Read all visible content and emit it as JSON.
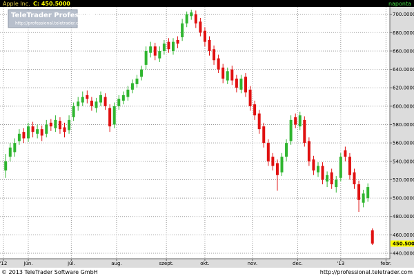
{
  "header": {
    "symbol": "Apple Inc.",
    "close_label": "C: 450.5000",
    "interval": "naponta"
  },
  "watermark": {
    "brand": "TeleTrader Professional",
    "url": "http://professional.teletrader.com"
  },
  "footer": {
    "copyright": "© 2013 TeleTrader Software GmbH",
    "url": "http://professional.teletrader.com"
  },
  "last_price_label": "450.5000",
  "chart_data": {
    "type": "candlestick",
    "up_color": "#2fb52f",
    "down_color": "#e01010",
    "grid": true,
    "xlim": [
      -1.5,
      170.7
    ],
    "ylim": [
      434,
      708
    ],
    "xticks": [
      {
        "value": 0,
        "label": "'12"
      },
      {
        "value": 11,
        "label": "jún."
      },
      {
        "value": 30,
        "label": "júl."
      },
      {
        "value": 50,
        "label": "aug."
      },
      {
        "value": 72,
        "label": "szept."
      },
      {
        "value": 89,
        "label": "okt."
      },
      {
        "value": 110,
        "label": "nov."
      },
      {
        "value": 130,
        "label": "dec."
      },
      {
        "value": 149,
        "label": "'13"
      },
      {
        "value": 169,
        "label": "febr."
      }
    ],
    "yticks": [
      {
        "value": 440,
        "label": "440.0000"
      },
      {
        "value": 460,
        "label": "460.0000"
      },
      {
        "value": 480,
        "label": "480.0000"
      },
      {
        "value": 500,
        "label": "500.0000"
      },
      {
        "value": 520,
        "label": "520.0000"
      },
      {
        "value": 540,
        "label": "540.0000"
      },
      {
        "value": 560,
        "label": "560.0000"
      },
      {
        "value": 580,
        "label": "580.0000"
      },
      {
        "value": 600,
        "label": "600.0000"
      },
      {
        "value": 620,
        "label": "620.0000"
      },
      {
        "value": 640,
        "label": "640.0000"
      },
      {
        "value": 660,
        "label": "660.0000"
      },
      {
        "value": 680,
        "label": "680.0000"
      },
      {
        "value": 700,
        "label": "700.0000"
      }
    ],
    "x": [
      1,
      3,
      5,
      7,
      9,
      11,
      13,
      15,
      17,
      19,
      21,
      23,
      25,
      27,
      29,
      31,
      33,
      35,
      37,
      39,
      41,
      43,
      45,
      47,
      49,
      51,
      53,
      55,
      57,
      59,
      61,
      63,
      65,
      67,
      69,
      71,
      73,
      75,
      77,
      79,
      81,
      83,
      85,
      87,
      89,
      91,
      93,
      95,
      97,
      99,
      101,
      103,
      105,
      107,
      109,
      111,
      113,
      115,
      117,
      119,
      121,
      123,
      125,
      127,
      129,
      131,
      133,
      135,
      137,
      139,
      141,
      143,
      145,
      147,
      149,
      151,
      153,
      155,
      157,
      159,
      161,
      163
    ],
    "open": [
      530,
      545,
      550,
      562,
      572,
      565,
      578,
      570,
      575,
      570,
      582,
      576,
      584,
      577,
      574,
      588,
      600,
      604,
      612,
      606,
      598,
      604,
      610,
      598,
      580,
      600,
      606,
      610,
      618,
      624,
      632,
      645,
      658,
      665,
      652,
      660,
      670,
      660,
      672,
      675,
      690,
      698,
      700,
      692,
      682,
      672,
      662,
      652,
      642,
      628,
      640,
      630,
      618,
      632,
      618,
      602,
      592,
      578,
      560,
      545,
      538,
      528,
      545,
      562,
      588,
      578,
      585,
      562,
      542,
      528,
      535,
      518,
      528,
      512,
      522,
      552,
      545,
      528,
      515,
      495,
      500,
      465
    ],
    "high": [
      548,
      560,
      565,
      575,
      576,
      582,
      583,
      580,
      579,
      585,
      586,
      590,
      588,
      582,
      590,
      604,
      610,
      616,
      617,
      610,
      609,
      616,
      614,
      602,
      604,
      612,
      616,
      622,
      629,
      634,
      644,
      665,
      670,
      669,
      665,
      672,
      674,
      674,
      676,
      695,
      703,
      705,
      704,
      696,
      686,
      676,
      666,
      656,
      646,
      642,
      644,
      634,
      634,
      636,
      622,
      606,
      596,
      582,
      564,
      549,
      542,
      549,
      564,
      590,
      592,
      594,
      589,
      566,
      546,
      539,
      539,
      529,
      532,
      524,
      549,
      556,
      549,
      532,
      519,
      509,
      516,
      467
    ],
    "low": [
      522,
      540,
      545,
      558,
      560,
      561,
      566,
      565,
      562,
      566,
      573,
      572,
      570,
      566,
      570,
      584,
      595,
      600,
      603,
      595,
      593,
      600,
      596,
      572,
      576,
      596,
      602,
      606,
      614,
      620,
      628,
      640,
      653,
      650,
      648,
      656,
      658,
      656,
      663,
      671,
      686,
      694,
      685,
      676,
      665,
      655,
      645,
      636,
      625,
      624,
      623,
      615,
      614,
      610,
      595,
      585,
      570,
      555,
      535,
      530,
      508,
      524,
      540,
      558,
      576,
      574,
      556,
      535,
      525,
      523,
      515,
      512,
      510,
      506,
      518,
      540,
      520,
      510,
      485,
      490,
      496,
      449
    ],
    "close": [
      540,
      555,
      560,
      570,
      565,
      578,
      572,
      575,
      568,
      580,
      578,
      585,
      575,
      572,
      585,
      600,
      605,
      610,
      608,
      600,
      605,
      612,
      600,
      578,
      600,
      608,
      612,
      618,
      625,
      630,
      640,
      660,
      665,
      655,
      660,
      668,
      662,
      670,
      668,
      690,
      700,
      702,
      690,
      680,
      670,
      660,
      650,
      640,
      630,
      638,
      628,
      620,
      630,
      615,
      600,
      590,
      575,
      560,
      540,
      535,
      525,
      545,
      560,
      585,
      580,
      590,
      560,
      540,
      530,
      535,
      520,
      525,
      515,
      520,
      545,
      545,
      525,
      515,
      498,
      505,
      512,
      450.5
    ]
  }
}
